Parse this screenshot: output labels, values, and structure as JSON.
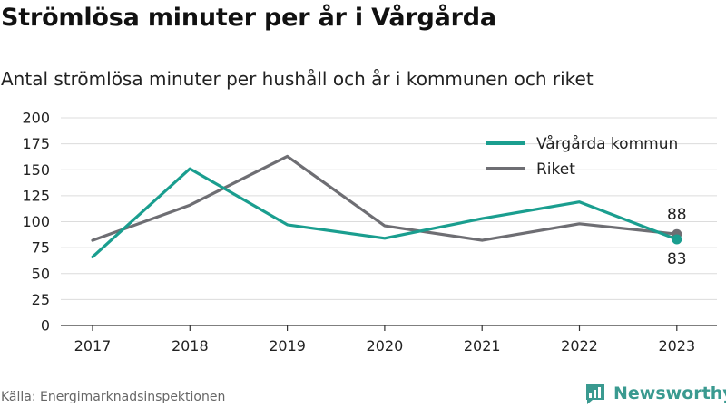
{
  "title": "Strömlösa minuter per år i Vårgårda",
  "subtitle": "Antal strömlösa minuter per hushåll och år i kommunen och riket",
  "source": "Källa: Energimarknadsinspektionen",
  "brand": {
    "name": "Newsworthy",
    "icon": "newsworthy-logo-icon",
    "color": "#3a9a90"
  },
  "chart_data": {
    "type": "line",
    "categories": [
      "2017",
      "2018",
      "2019",
      "2020",
      "2021",
      "2022",
      "2023"
    ],
    "ylim": [
      0,
      200
    ],
    "yticks": [
      0,
      25,
      50,
      75,
      100,
      125,
      150,
      175,
      200
    ],
    "grid": true,
    "legend_position": "top-right",
    "series": [
      {
        "name": "Vårgårda kommun",
        "color": "#1a9e8f",
        "values": [
          66,
          151,
          97,
          84,
          103,
          119,
          83
        ]
      },
      {
        "name": "Riket",
        "color": "#6e6e73",
        "values": [
          82,
          116,
          163,
          96,
          82,
          98,
          88
        ]
      }
    ],
    "end_labels": [
      {
        "series": "Riket",
        "text": "88"
      },
      {
        "series": "Vårgårda kommun",
        "text": "83"
      }
    ]
  }
}
